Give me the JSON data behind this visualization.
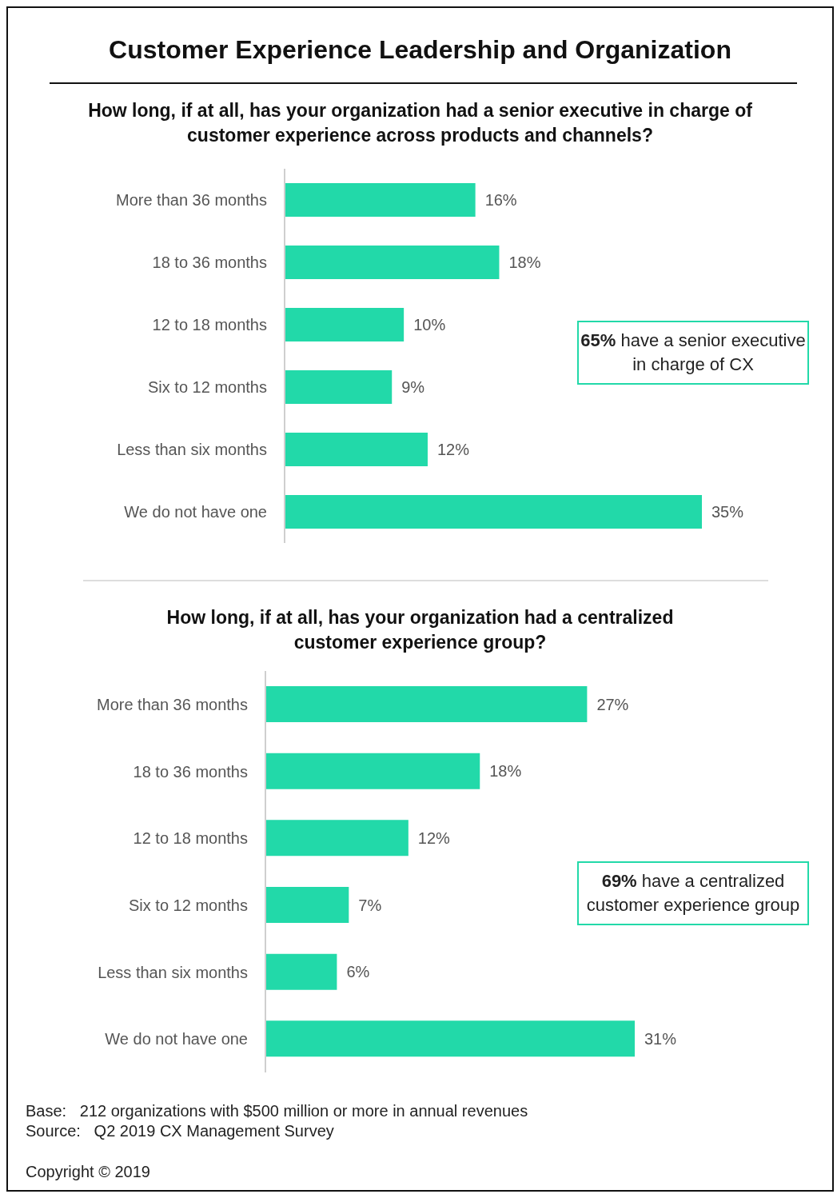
{
  "chart_data": [
    {
      "type": "bar",
      "orientation": "horizontal",
      "title": "Customer Experience Leadership and Organization",
      "subtitle": "How long, if at all, has your organization had a senior executive in charge of customer experience across products and channels?",
      "categories": [
        "More than 36 months",
        "18 to 36 months",
        "12 to 18 months",
        "Six to 12 months",
        "Less than six months",
        "We do not have one"
      ],
      "values": [
        16,
        18,
        10,
        9,
        12,
        35
      ],
      "value_labels": [
        "16%",
        "18%",
        "10%",
        "9%",
        "12%",
        "35%"
      ],
      "color": "#22d9a9",
      "annotations": [
        "65% have a senior executive in charge of CX"
      ]
    },
    {
      "type": "bar",
      "orientation": "horizontal",
      "title": "How long, if at all, has your organization had a centralized customer experience group?",
      "categories": [
        "More than 36 months",
        "18 to 36 months",
        "12 to 18 months",
        "Six to 12 months",
        "Less than six months",
        "We do not have one"
      ],
      "values": [
        27,
        18,
        12,
        7,
        6,
        31
      ],
      "value_labels": [
        "27%",
        "18%",
        "12%",
        "7%",
        "6%",
        "31%"
      ],
      "color": "#22d9a9",
      "annotations": [
        "69% have a centralized customer experience group",
        "Base:   212 organizations with $500 million or more in annual revenues",
        "Source:   Q2 2019 CX Management Survey",
        "Copyright © 2019"
      ]
    }
  ]
}
